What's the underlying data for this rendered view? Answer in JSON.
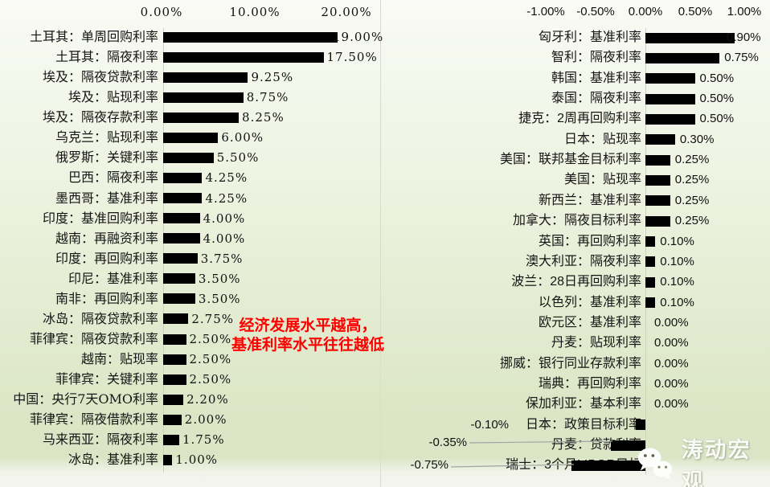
{
  "chart_data": [
    {
      "type": "bar",
      "orientation": "horizontal",
      "title": "",
      "xlabel": "",
      "ylabel": "",
      "xlim": [
        0,
        20
      ],
      "x_ticks": [
        "0.00%",
        "10.00%",
        "20.00%"
      ],
      "grid": false,
      "legend": "none",
      "bar_color": "#000000",
      "categories": [
        "土耳其：单周回购利率",
        "土耳其：隔夜利率",
        "埃及：隔夜贷款利率",
        "埃及：贴现利率",
        "埃及：隔夜存款利率",
        "乌克兰：贴现利率",
        "俄罗斯：关键利率",
        "巴西：隔夜利率",
        "墨西哥：基准利率",
        "印度：基准回购利率",
        "越南：再融资利率",
        "印度：再回购利率",
        "印尼：基准利率",
        "南非：再回购利率",
        "冰岛：隔夜贷款利率",
        "菲律宾：隔夜贷款利率",
        "越南：贴现率",
        "菲律宾：关键利率",
        "中国：央行7天OMO利率",
        "菲律宾：隔夜借款利率",
        "马来西亚：隔夜利率",
        "冰岛：基准利率"
      ],
      "values": [
        19.0,
        17.5,
        9.25,
        8.75,
        8.25,
        6.0,
        5.5,
        4.25,
        4.25,
        4.0,
        4.0,
        3.75,
        3.5,
        3.5,
        2.75,
        2.5,
        2.5,
        2.5,
        2.2,
        2.0,
        1.75,
        1.0
      ],
      "value_labels": [
        "19.00%",
        "17.50%",
        "9.25%",
        "8.75%",
        "8.25%",
        "6.00%",
        "5.50%",
        "4.25%",
        "4.25%",
        "4.00%",
        "4.00%",
        "3.75%",
        "3.50%",
        "3.50%",
        "2.75%",
        "2.50%",
        "2.50%",
        "2.50%",
        "2.20%",
        "2.00%",
        "1.75%",
        "1.00%"
      ]
    },
    {
      "type": "bar",
      "orientation": "horizontal",
      "title": "",
      "xlabel": "",
      "ylabel": "",
      "xlim": [
        -1,
        1
      ],
      "x_ticks": [
        "-1.00%",
        "-0.50%",
        "0.00%",
        "0.50%",
        "1.00%"
      ],
      "grid": false,
      "legend": "none",
      "bar_color": "#000000",
      "categories": [
        "匈牙利：基准利率",
        "智利：隔夜利率",
        "韩国：基准利率",
        "泰国：隔夜利率",
        "捷克：2周再回购利率",
        "日本：贴现率",
        "美国：联邦基金目标利率",
        "美国：贴现率",
        "新西兰：基准利率",
        "加拿大：隔夜目标利率",
        "英国：再回购利率",
        "澳大利亚：隔夜利率",
        "波兰：28日再回购利率",
        "以色列：基准利率",
        "欧元区：基准利率",
        "丹麦：贴现利率",
        "挪威：银行同业存款利率",
        "瑞典：再回购利率",
        "保加利亚：基本利率",
        "日本：政策目标利率",
        "丹麦：贷款利率",
        "瑞士：3个月LIBOR目标"
      ],
      "values": [
        0.9,
        0.75,
        0.5,
        0.5,
        0.5,
        0.3,
        0.25,
        0.25,
        0.25,
        0.25,
        0.1,
        0.1,
        0.1,
        0.1,
        0.0,
        0.0,
        0.0,
        0.0,
        0.0,
        -0.1,
        -0.35,
        -0.75
      ],
      "value_labels": [
        "0.90%",
        "0.75%",
        "0.50%",
        "0.50%",
        "0.50%",
        "0.30%",
        "0.25%",
        "0.25%",
        "0.25%",
        "0.25%",
        "0.10%",
        "0.10%",
        "0.10%",
        "0.10%",
        "0.00%",
        "0.00%",
        "0.00%",
        "0.00%",
        "0.00%",
        "-0.10%",
        "-0.35%",
        "-0.75%"
      ]
    }
  ],
  "annotation": {
    "line1": "经济发展水平越高，",
    "line2": "基准利率水平往往越低",
    "color": "#ff0000"
  },
  "watermark": {
    "icon": "wechat-icon",
    "text": "涛动宏观"
  },
  "colors": {
    "bar": "#000000",
    "background_top": "#fafbf6",
    "background_bottom": "#dbe5c5",
    "axis_line": "#cdd1c2",
    "divider": "#d8dccd",
    "leader_line": "#a3a3a3",
    "annotation_red": "#ff0000"
  }
}
